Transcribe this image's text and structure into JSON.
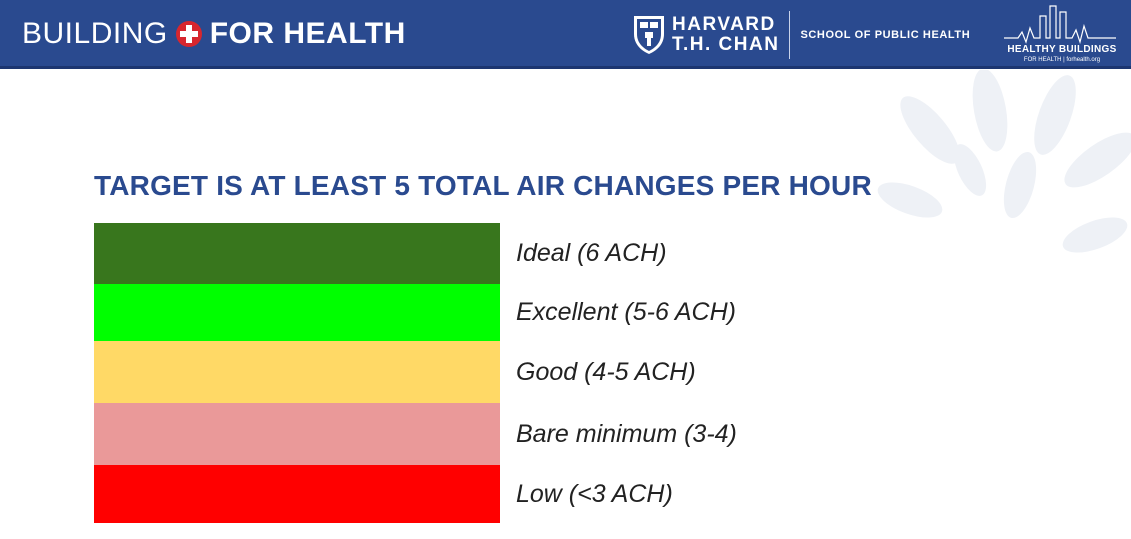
{
  "header": {
    "brand_left": "BUILDING",
    "brand_right": "FOR HEALTH",
    "brand_icon": "red-cross-icon",
    "harvard_line1": "HARVARD",
    "harvard_line2": "T.H. CHAN",
    "school": "SCHOOL OF PUBLIC HEALTH",
    "hb_title": "HEALTHY BUILDINGS",
    "hb_sub": "FOR HEALTH  |  forhealth.org",
    "colors": {
      "bar": "#2a4a8f",
      "cross": "#d7262e"
    }
  },
  "main": {
    "title": "TARGET IS AT LEAST 5 TOTAL AIR CHANGES PER HOUR",
    "levels": [
      {
        "label": "Ideal (6 ACH)",
        "color": "#38761d"
      },
      {
        "label": "Excellent (5-6 ACH)",
        "color": "#00ff00"
      },
      {
        "label": "Good (4-5 ACH)",
        "color": "#ffd966"
      },
      {
        "label": "Bare minimum (3-4)",
        "color": "#ea9999"
      },
      {
        "label": "Low (<3 ACH)",
        "color": "#ff0000"
      }
    ]
  }
}
